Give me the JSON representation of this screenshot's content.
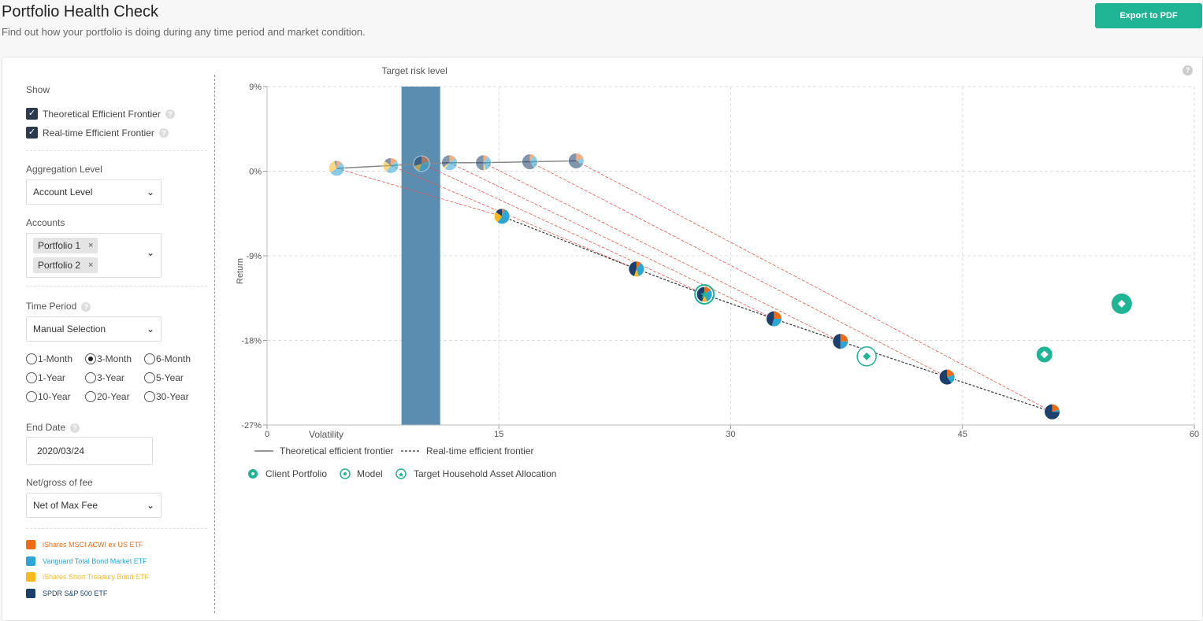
{
  "header": {
    "title": "Portfolio Health Check",
    "subtitle": "Find out how your portfolio is doing during any time period and market condition.",
    "export_label": "Export to PDF"
  },
  "sidebar": {
    "show_label": "Show",
    "show_options": [
      {
        "label": "Theoretical Efficient Frontier",
        "checked": true
      },
      {
        "label": "Real-time Efficient Frontier",
        "checked": true
      }
    ],
    "aggregation_label": "Aggregation Level",
    "aggregation_value": "Account Level",
    "accounts_label": "Accounts",
    "accounts": [
      "Portfolio 1",
      "Portfolio 2"
    ],
    "time_period_label": "Time Period",
    "time_period_value": "Manual Selection",
    "periods": [
      "1-Month",
      "3-Month",
      "6-Month",
      "1-Year",
      "3-Year",
      "5-Year",
      "10-Year",
      "20-Year",
      "30-Year"
    ],
    "selected_period": "3-Month",
    "end_date_label": "End Date",
    "end_date_value": "2020/03/24",
    "fee_label": "Net/gross of fee",
    "fee_value": "Net of Max Fee",
    "funds": [
      {
        "name": "iShares MSCI ACWI ex US ETF",
        "color": "#ee6b14"
      },
      {
        "name": "Vanguard Total Bond Market ETF",
        "color": "#2ba6d6"
      },
      {
        "name": "iShares Short Treasury Bond ETF",
        "color": "#f7b91d"
      },
      {
        "name": "SPDR S&P 500 ETF",
        "color": "#1c3f6b"
      }
    ]
  },
  "chart_data": {
    "type": "scatter",
    "title": "",
    "target_band_label": "Target risk level",
    "target_band": [
      8.7,
      11.2
    ],
    "xlabel": "Volatility",
    "ylabel": "Return",
    "xlim": [
      0,
      60
    ],
    "ylim": [
      -27,
      9
    ],
    "x_ticks": [
      0,
      15,
      30,
      45,
      60
    ],
    "y_ticks": [
      9,
      0,
      -9,
      -18,
      -27
    ],
    "y_tick_labels": [
      "9%",
      "0%",
      "-9%",
      "-18%",
      "-27%"
    ],
    "theoretical_frontier": {
      "name": "Theoretical efficient frontier",
      "points": [
        {
          "x": 4.5,
          "y": 0.3
        },
        {
          "x": 8.0,
          "y": 0.6
        },
        {
          "x": 10.0,
          "y": 0.8
        },
        {
          "x": 11.8,
          "y": 0.9
        },
        {
          "x": 14.0,
          "y": 0.9
        },
        {
          "x": 17.0,
          "y": 1.0
        },
        {
          "x": 20.0,
          "y": 1.1
        }
      ]
    },
    "realtime_frontier": {
      "name": "Real-time efficient frontier",
      "points": [
        {
          "x": 15.2,
          "y": -4.8
        },
        {
          "x": 23.9,
          "y": -10.4
        },
        {
          "x": 28.3,
          "y": -13.1
        },
        {
          "x": 32.8,
          "y": -15.7
        },
        {
          "x": 37.1,
          "y": -18.1
        },
        {
          "x": 44.0,
          "y": -21.9
        },
        {
          "x": 50.8,
          "y": -25.6
        }
      ]
    },
    "client_portfolios": [
      {
        "x": 55.3,
        "y": -14.1
      },
      {
        "x": 50.3,
        "y": -19.5
      }
    ],
    "model": [
      {
        "x": 38.8,
        "y": -19.7
      }
    ],
    "target_household": [
      {
        "x": 28.3,
        "y": -13.1
      }
    ],
    "legend": {
      "theoretical": "Theoretical efficient frontier",
      "realtime": "Real-time efficient frontier",
      "client": "Client Portfolio",
      "model": "Model",
      "target": "Target Household Asset Allocation"
    },
    "colors": {
      "accent": "#1fb493",
      "band": "#5b8db0",
      "frontier": "#888888",
      "connector": "#e8534f",
      "realtime": "#333333"
    }
  }
}
